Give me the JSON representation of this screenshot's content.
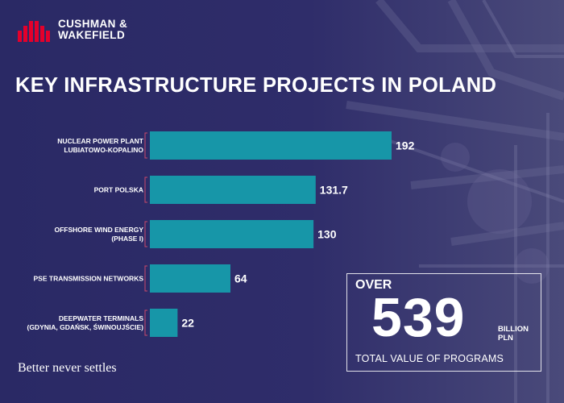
{
  "brand": {
    "name_line1": "CUSHMAN &",
    "name_line2": "WAKEFIELD",
    "tagline": "Better never settles",
    "accent_color": "#e4002b"
  },
  "title": "KEY INFRASTRUCTURE PROJECTS IN POLAND",
  "total": {
    "prefix": "OVER",
    "value": "539",
    "unit_line1": "BILLION",
    "unit_line2": "PLN",
    "caption": "TOTAL VALUE OF PROGRAMS"
  },
  "chart_data": {
    "type": "bar",
    "orientation": "horizontal",
    "title": "KEY INFRASTRUCTURE PROJECTS IN POLAND",
    "xlabel": "",
    "ylabel": "",
    "xlim": [
      0,
      192
    ],
    "grid": false,
    "legend": "none",
    "bar_color": "#1796a8",
    "categories": [
      [
        "NUCLEAR POWER PLANT",
        "LUBIATOWO-KOPALINO"
      ],
      [
        "PORT POLSKA"
      ],
      [
        "OFFSHORE WIND ENERGY",
        "(PHASE I)"
      ],
      [
        "PSE TRANSMISSION NETWORKS"
      ],
      [
        "DEEPWATER TERMINALS",
        "(GDYNIA, GDAŃSK, ŚWINOUJŚCIE)"
      ]
    ],
    "values": [
      192,
      131.7,
      130,
      64,
      22
    ],
    "value_labels": [
      "192",
      "131.7",
      "130",
      "64",
      "22"
    ]
  }
}
